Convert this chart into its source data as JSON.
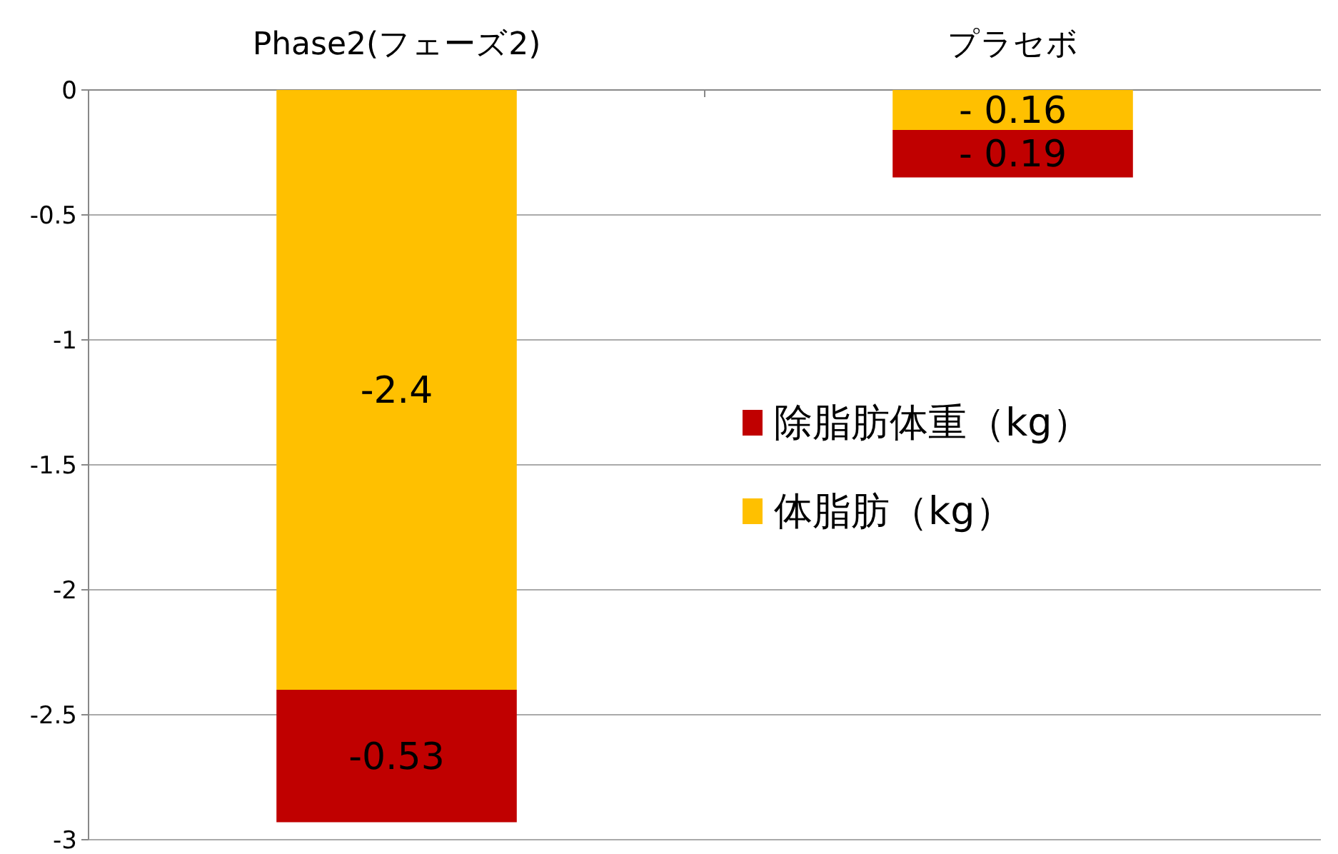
{
  "chart_data": {
    "type": "bar",
    "stacked": true,
    "categories": [
      "Phase2(フェーズ2)",
      "プラセボ"
    ],
    "series": [
      {
        "name": "体脂肪（kg）",
        "color": "#ffc000",
        "values": [
          -2.4,
          -0.16
        ],
        "value_labels": [
          "-2.4",
          "- 0.16"
        ]
      },
      {
        "name": "除脂肪体重（kg）",
        "color": "#c00000",
        "values": [
          -0.53,
          -0.19
        ],
        "value_labels": [
          "-0.53",
          "- 0.19"
        ]
      }
    ],
    "ylim": [
      -3,
      0
    ],
    "yticks": [
      0,
      -0.5,
      -1,
      -1.5,
      -2,
      -2.5,
      -3
    ],
    "grid": "y",
    "legend": "right"
  }
}
